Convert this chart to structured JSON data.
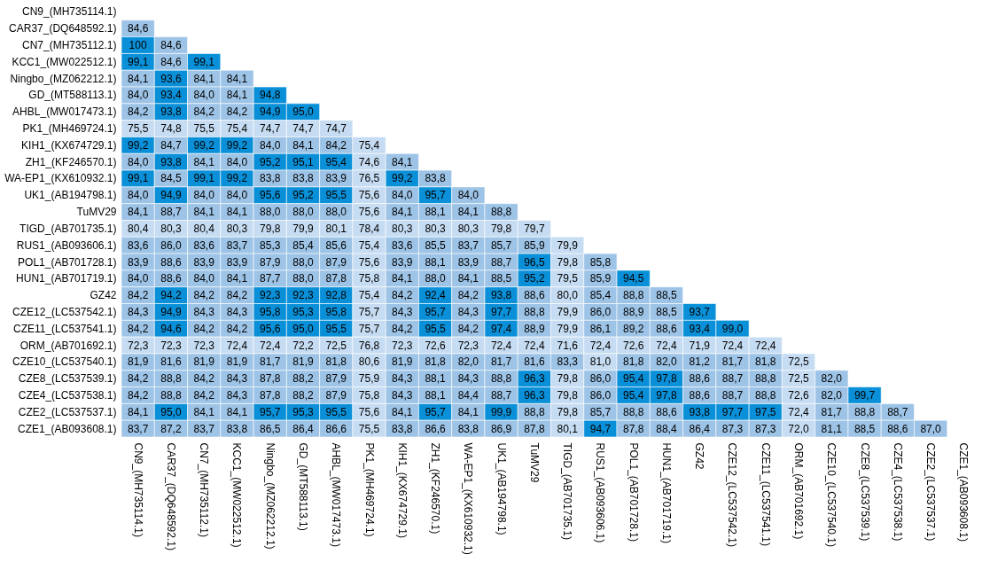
{
  "chart_data": {
    "type": "heatmap",
    "categories": [
      "CN9_(MH735114.1)",
      "CAR37_(DQ648592.1)",
      "CN7_(MH735112.1)",
      "KCC1_(MW022512.1)",
      "Ningbo_(MZ062212.1)",
      "GD_(MT588113.1)",
      "AHBL_(MW017473.1)",
      "PK1_(MH469724.1)",
      "KIH1_(KX674729.1)",
      "ZH1_(KF246570.1)",
      "WA-EP1_(KX610932.1)",
      "UK1_(AB194798.1)",
      "TuMV29",
      "TIGD_(AB701735.1)",
      "RUS1_(AB093606.1)",
      "POL1_(AB701728.1)",
      "HUN1_(AB701719.1)",
      "GZ42",
      "CZE12_(LC537542.1)",
      "CZE11_(LC537541.1)",
      "ORM_(AB701692.1)",
      "CZE10_(LC537540.1)",
      "CZE8_(LC537539.1)",
      "CZE4_(LC537538.1)",
      "CZE2_(LC537537.1)",
      "CZE1_(AB093608.1)"
    ],
    "y_categories": [
      "CN9_(MH735114.1)",
      "CAR37_(DQ648592.1)",
      "CN7_(MH735112.1)",
      "KCC1_(MW022512.1)",
      "Ningbo_(MZ062212.1)",
      "GD_(MT588113.1)",
      "AHBL_(MW017473.1)",
      "PK1_(MH469724.1)",
      "KIH1_(KX674729.1)",
      "ZH1_(KF246570.1)",
      "WA-EP1_(KX610932.1)",
      "UK1_(AB194798.1)",
      "TuMV29",
      "TIGD_(AB701735.1)",
      "RUS1_(AB093606.1)",
      "POL1_(AB701728.1)",
      "HUN1_(AB701719.1)",
      "GZ42",
      "CZE12_(LC537542.1)",
      "CZE11_(LC537541.1)",
      "ORM_(AB701692.1)",
      "CZE10_(LC537540.1)",
      "CZE8_(LC537539.1)",
      "CZE4_(LC537538.1)",
      "CZE2_(LC537537.1)",
      "CZE1_(AB093608.1)"
    ],
    "colors": [
      "#c6dcf2",
      "#9dc3e6",
      "#0a90d8"
    ],
    "cells": [
      [
        null,
        null,
        null,
        null,
        null,
        null,
        null,
        null,
        null,
        null,
        null,
        null,
        null,
        null,
        null,
        null,
        null,
        null,
        null,
        null,
        null,
        null,
        null,
        null,
        null,
        null
      ],
      [
        84.6,
        null,
        null,
        null,
        null,
        null,
        null,
        null,
        null,
        null,
        null,
        null,
        null,
        null,
        null,
        null,
        null,
        null,
        null,
        null,
        null,
        null,
        null,
        null,
        null,
        null
      ],
      [
        100,
        84.6,
        null,
        null,
        null,
        null,
        null,
        null,
        null,
        null,
        null,
        null,
        null,
        null,
        null,
        null,
        null,
        null,
        null,
        null,
        null,
        null,
        null,
        null,
        null,
        null
      ],
      [
        99.1,
        84.6,
        99.1,
        null,
        null,
        null,
        null,
        null,
        null,
        null,
        null,
        null,
        null,
        null,
        null,
        null,
        null,
        null,
        null,
        null,
        null,
        null,
        null,
        null,
        null,
        null
      ],
      [
        84.1,
        93.6,
        84.1,
        84.1,
        null,
        null,
        null,
        null,
        null,
        null,
        null,
        null,
        null,
        null,
        null,
        null,
        null,
        null,
        null,
        null,
        null,
        null,
        null,
        null,
        null,
        null
      ],
      [
        84.0,
        93.4,
        84.0,
        84.1,
        94.8,
        null,
        null,
        null,
        null,
        null,
        null,
        null,
        null,
        null,
        null,
        null,
        null,
        null,
        null,
        null,
        null,
        null,
        null,
        null,
        null,
        null
      ],
      [
        84.2,
        93.8,
        84.2,
        84.2,
        94.9,
        95.0,
        null,
        null,
        null,
        null,
        null,
        null,
        null,
        null,
        null,
        null,
        null,
        null,
        null,
        null,
        null,
        null,
        null,
        null,
        null,
        null
      ],
      [
        75.5,
        74.8,
        75.5,
        75.4,
        74.7,
        74.7,
        74.7,
        null,
        null,
        null,
        null,
        null,
        null,
        null,
        null,
        null,
        null,
        null,
        null,
        null,
        null,
        null,
        null,
        null,
        null,
        null
      ],
      [
        99.2,
        84.7,
        99.2,
        99.2,
        84.0,
        84.1,
        84.2,
        75.4,
        null,
        null,
        null,
        null,
        null,
        null,
        null,
        null,
        null,
        null,
        null,
        null,
        null,
        null,
        null,
        null,
        null,
        null
      ],
      [
        84.0,
        93.8,
        84.1,
        84.0,
        95.2,
        95.1,
        95.4,
        74.6,
        84.1,
        null,
        null,
        null,
        null,
        null,
        null,
        null,
        null,
        null,
        null,
        null,
        null,
        null,
        null,
        null,
        null,
        null
      ],
      [
        99.1,
        84.5,
        99.1,
        99.2,
        83.8,
        83.8,
        83.9,
        76.5,
        99.2,
        83.8,
        null,
        null,
        null,
        null,
        null,
        null,
        null,
        null,
        null,
        null,
        null,
        null,
        null,
        null,
        null,
        null
      ],
      [
        84.0,
        94.9,
        84.0,
        84.0,
        95.6,
        95.2,
        95.5,
        75.6,
        84.0,
        95.7,
        84.0,
        null,
        null,
        null,
        null,
        null,
        null,
        null,
        null,
        null,
        null,
        null,
        null,
        null,
        null,
        null
      ],
      [
        84.1,
        88.7,
        84.1,
        84.1,
        88.0,
        88.0,
        88.0,
        75.6,
        84.1,
        88.1,
        84.1,
        88.8,
        null,
        null,
        null,
        null,
        null,
        null,
        null,
        null,
        null,
        null,
        null,
        null,
        null,
        null
      ],
      [
        80.4,
        80.3,
        80.4,
        80.3,
        79.8,
        79.9,
        80.1,
        78.4,
        80.3,
        80.3,
        80.3,
        79.8,
        79.7,
        null,
        null,
        null,
        null,
        null,
        null,
        null,
        null,
        null,
        null,
        null,
        null,
        null
      ],
      [
        83.6,
        86.0,
        83.6,
        83.7,
        85.3,
        85.4,
        85.6,
        75.4,
        83.6,
        85.5,
        83.7,
        85.7,
        85.9,
        79.9,
        null,
        null,
        null,
        null,
        null,
        null,
        null,
        null,
        null,
        null,
        null,
        null
      ],
      [
        83.9,
        88.6,
        83.9,
        83.9,
        87.9,
        88.0,
        87.9,
        75.6,
        83.9,
        88.1,
        83.9,
        88.7,
        96.5,
        79.8,
        85.8,
        null,
        null,
        null,
        null,
        null,
        null,
        null,
        null,
        null,
        null,
        null
      ],
      [
        84.0,
        88.6,
        84.0,
        84.1,
        87.7,
        88.0,
        87.8,
        75.8,
        84.1,
        88.0,
        84.1,
        88.5,
        95.2,
        79.5,
        85.9,
        94.5,
        null,
        null,
        null,
        null,
        null,
        null,
        null,
        null,
        null,
        null
      ],
      [
        84.2,
        94.2,
        84.2,
        84.2,
        92.3,
        92.3,
        92.8,
        75.4,
        84.2,
        92.4,
        84.2,
        93.8,
        88.6,
        80.0,
        85.4,
        88.8,
        88.5,
        null,
        null,
        null,
        null,
        null,
        null,
        null,
        null,
        null
      ],
      [
        84.3,
        94.9,
        84.3,
        84.3,
        95.8,
        95.3,
        95.8,
        75.7,
        84.3,
        95.7,
        84.3,
        97.7,
        88.8,
        79.9,
        86.0,
        88.9,
        88.5,
        93.7,
        null,
        null,
        null,
        null,
        null,
        null,
        null,
        null
      ],
      [
        84.2,
        94.6,
        84.2,
        84.2,
        95.6,
        95.0,
        95.5,
        75.7,
        84.2,
        95.5,
        84.2,
        97.4,
        88.9,
        79.9,
        86.1,
        89.2,
        88.6,
        93.4,
        99.0,
        null,
        null,
        null,
        null,
        null,
        null,
        null
      ],
      [
        72.3,
        72.3,
        72.3,
        72.4,
        72.4,
        72.2,
        72.5,
        76.8,
        72.3,
        72.6,
        72.3,
        72.4,
        72.4,
        71.6,
        72.4,
        72.6,
        72.4,
        71.9,
        72.4,
        72.4,
        null,
        null,
        null,
        null,
        null,
        null
      ],
      [
        81.9,
        81.6,
        81.9,
        81.9,
        81.7,
        81.9,
        81.8,
        80.6,
        81.9,
        81.8,
        82.0,
        81.7,
        81.6,
        83.3,
        81.0,
        81.8,
        82.0,
        81.2,
        81.7,
        81.8,
        72.5,
        null,
        null,
        null,
        null,
        null
      ],
      [
        84.2,
        88.8,
        84.2,
        84.3,
        87.8,
        88.2,
        87.9,
        75.9,
        84.3,
        88.1,
        84.3,
        88.8,
        96.3,
        79.8,
        86.0,
        95.4,
        97.8,
        88.6,
        88.7,
        88.8,
        72.5,
        82.0,
        null,
        null,
        null,
        null
      ],
      [
        84.2,
        88.8,
        84.2,
        84.3,
        87.8,
        88.2,
        87.9,
        75.8,
        84.3,
        88.1,
        84.4,
        88.7,
        96.3,
        79.8,
        86.0,
        95.4,
        97.8,
        88.6,
        88.7,
        88.8,
        72.6,
        82.0,
        99.7,
        null,
        null,
        null
      ],
      [
        84.1,
        95.0,
        84.1,
        84.1,
        95.7,
        95.3,
        95.5,
        75.6,
        84.1,
        95.7,
        84.1,
        99.9,
        88.8,
        79.8,
        85.7,
        88.8,
        88.6,
        93.8,
        97.7,
        97.5,
        72.4,
        81.7,
        88.8,
        88.7,
        null,
        null
      ],
      [
        83.7,
        87.2,
        83.7,
        83.8,
        86.5,
        86.4,
        86.6,
        75.5,
        83.8,
        86.6,
        83.8,
        86.9,
        87.8,
        80.1,
        94.7,
        87.8,
        88.4,
        86.4,
        87.3,
        87.3,
        72.0,
        81.1,
        88.5,
        88.6,
        87.0,
        null
      ]
    ],
    "cell_labels": [
      [
        null,
        null,
        null,
        null,
        null,
        null,
        null,
        null,
        null,
        null,
        null,
        null,
        null,
        null,
        null,
        null,
        null,
        null,
        null,
        null,
        null,
        null,
        null,
        null,
        null,
        null
      ],
      [
        "84,6",
        null,
        null,
        null,
        null,
        null,
        null,
        null,
        null,
        null,
        null,
        null,
        null,
        null,
        null,
        null,
        null,
        null,
        null,
        null,
        null,
        null,
        null,
        null,
        null,
        null
      ],
      [
        "100",
        "84,6",
        null,
        null,
        null,
        null,
        null,
        null,
        null,
        null,
        null,
        null,
        null,
        null,
        null,
        null,
        null,
        null,
        null,
        null,
        null,
        null,
        null,
        null,
        null,
        null
      ],
      [
        "99,1",
        "84,6",
        "99,1",
        null,
        null,
        null,
        null,
        null,
        null,
        null,
        null,
        null,
        null,
        null,
        null,
        null,
        null,
        null,
        null,
        null,
        null,
        null,
        null,
        null,
        null,
        null
      ],
      [
        "84,1",
        "93,6",
        "84,1",
        "84,1",
        null,
        null,
        null,
        null,
        null,
        null,
        null,
        null,
        null,
        null,
        null,
        null,
        null,
        null,
        null,
        null,
        null,
        null,
        null,
        null,
        null,
        null
      ],
      [
        "84,0",
        "93,4",
        "84,0",
        "84,1",
        "94,8",
        null,
        null,
        null,
        null,
        null,
        null,
        null,
        null,
        null,
        null,
        null,
        null,
        null,
        null,
        null,
        null,
        null,
        null,
        null,
        null,
        null
      ],
      [
        "84,2",
        "93,8",
        "84,2",
        "84,2",
        "94,9",
        "95,0",
        null,
        null,
        null,
        null,
        null,
        null,
        null,
        null,
        null,
        null,
        null,
        null,
        null,
        null,
        null,
        null,
        null,
        null,
        null,
        null
      ],
      [
        "75,5",
        "74,8",
        "75,5",
        "75,4",
        "74,7",
        "74,7",
        "74,7",
        null,
        null,
        null,
        null,
        null,
        null,
        null,
        null,
        null,
        null,
        null,
        null,
        null,
        null,
        null,
        null,
        null,
        null,
        null
      ],
      [
        "99,2",
        "84,7",
        "99,2",
        "99,2",
        "84,0",
        "84,1",
        "84,2",
        "75,4",
        null,
        null,
        null,
        null,
        null,
        null,
        null,
        null,
        null,
        null,
        null,
        null,
        null,
        null,
        null,
        null,
        null,
        null
      ],
      [
        "84,0",
        "93,8",
        "84,1",
        "84,0",
        "95,2",
        "95,1",
        "95,4",
        "74,6",
        "84,1",
        null,
        null,
        null,
        null,
        null,
        null,
        null,
        null,
        null,
        null,
        null,
        null,
        null,
        null,
        null,
        null,
        null
      ],
      [
        "99,1",
        "84,5",
        "99,1",
        "99,2",
        "83,8",
        "83,8",
        "83,9",
        "76,5",
        "99,2",
        "83,8",
        null,
        null,
        null,
        null,
        null,
        null,
        null,
        null,
        null,
        null,
        null,
        null,
        null,
        null,
        null,
        null
      ],
      [
        "84,0",
        "94,9",
        "84,0",
        "84,0",
        "95,6",
        "95,2",
        "95,5",
        "75,6",
        "84,0",
        "95,7",
        "84,0",
        null,
        null,
        null,
        null,
        null,
        null,
        null,
        null,
        null,
        null,
        null,
        null,
        null,
        null,
        null
      ],
      [
        "84,1",
        "88,7",
        "84,1",
        "84,1",
        "88,0",
        "88,0",
        "88,0",
        "75,6",
        "84,1",
        "88,1",
        "84,1",
        "88,8",
        null,
        null,
        null,
        null,
        null,
        null,
        null,
        null,
        null,
        null,
        null,
        null,
        null,
        null
      ],
      [
        "80,4",
        "80,3",
        "80,4",
        "80,3",
        "79,8",
        "79,9",
        "80,1",
        "78,4",
        "80,3",
        "80,3",
        "80,3",
        "79,8",
        "79,7",
        null,
        null,
        null,
        null,
        null,
        null,
        null,
        null,
        null,
        null,
        null,
        null,
        null
      ],
      [
        "83,6",
        "86,0",
        "83,6",
        "83,7",
        "85,3",
        "85,4",
        "85,6",
        "75,4",
        "83,6",
        "85,5",
        "83,7",
        "85,7",
        "85,9",
        "79,9",
        null,
        null,
        null,
        null,
        null,
        null,
        null,
        null,
        null,
        null,
        null,
        null
      ],
      [
        "83,9",
        "88,6",
        "83,9",
        "83,9",
        "87,9",
        "88,0",
        "87,9",
        "75,6",
        "83,9",
        "88,1",
        "83,9",
        "88,7",
        "96,5",
        "79,8",
        "85,8",
        null,
        null,
        null,
        null,
        null,
        null,
        null,
        null,
        null,
        null,
        null
      ],
      [
        "84,0",
        "88,6",
        "84,0",
        "84,1",
        "87,7",
        "88,0",
        "87,8",
        "75,8",
        "84,1",
        "88,0",
        "84,1",
        "88,5",
        "95,2",
        "79,5",
        "85,9",
        "94,5",
        null,
        null,
        null,
        null,
        null,
        null,
        null,
        null,
        null,
        null
      ],
      [
        "84,2",
        "94,2",
        "84,2",
        "84,2",
        "92,3",
        "92,3",
        "92,8",
        "75,4",
        "84,2",
        "92,4",
        "84,2",
        "93,8",
        "88,6",
        "80,0",
        "85,4",
        "88,8",
        "88,5",
        null,
        null,
        null,
        null,
        null,
        null,
        null,
        null,
        null
      ],
      [
        "84,3",
        "94,9",
        "84,3",
        "84,3",
        "95,8",
        "95,3",
        "95,8",
        "75,7",
        "84,3",
        "95,7",
        "84,3",
        "97,7",
        "88,8",
        "79,9",
        "86,0",
        "88,9",
        "88,5",
        "93,7",
        null,
        null,
        null,
        null,
        null,
        null,
        null,
        null
      ],
      [
        "84,2",
        "94,6",
        "84,2",
        "84,2",
        "95,6",
        "95,0",
        "95,5",
        "75,7",
        "84,2",
        "95,5",
        "84,2",
        "97,4",
        "88,9",
        "79,9",
        "86,1",
        "89,2",
        "88,6",
        "93,4",
        "99,0",
        null,
        null,
        null,
        null,
        null,
        null,
        null
      ],
      [
        "72,3",
        "72,3",
        "72,3",
        "72,4",
        "72,4",
        "72,2",
        "72,5",
        "76,8",
        "72,3",
        "72,6",
        "72,3",
        "72,4",
        "72,4",
        "71,6",
        "72,4",
        "72,6",
        "72,4",
        "71,9",
        "72,4",
        "72,4",
        null,
        null,
        null,
        null,
        null,
        null
      ],
      [
        "81,9",
        "81,6",
        "81,9",
        "81,9",
        "81,7",
        "81,9",
        "81,8",
        "80,6",
        "81,9",
        "81,8",
        "82,0",
        "81,7",
        "81,6",
        "83,3",
        "81,0",
        "81,8",
        "82,0",
        "81,2",
        "81,7",
        "81,8",
        "72,5",
        null,
        null,
        null,
        null,
        null
      ],
      [
        "84,2",
        "88,8",
        "84,2",
        "84,3",
        "87,8",
        "88,2",
        "87,9",
        "75,9",
        "84,3",
        "88,1",
        "84,3",
        "88,8",
        "96,3",
        "79,8",
        "86,0",
        "95,4",
        "97,8",
        "88,6",
        "88,7",
        "88,8",
        "72,5",
        "82,0",
        null,
        null,
        null,
        null
      ],
      [
        "84,2",
        "88,8",
        "84,2",
        "84,3",
        "87,8",
        "88,2",
        "87,9",
        "75,8",
        "84,3",
        "88,1",
        "84,4",
        "88,7",
        "96,3",
        "79,8",
        "86,0",
        "95,4",
        "97,8",
        "88,6",
        "88,7",
        "88,8",
        "72,6",
        "82,0",
        "99,7",
        null,
        null,
        null
      ],
      [
        "84,1",
        "95,0",
        "84,1",
        "84,1",
        "95,7",
        "95,3",
        "95,5",
        "75,6",
        "84,1",
        "95,7",
        "84,1",
        "99,9",
        "88,8",
        "79,8",
        "85,7",
        "88,8",
        "88,6",
        "93,8",
        "97,7",
        "97,5",
        "72,4",
        "81,7",
        "88,8",
        "88,7",
        null,
        null
      ],
      [
        "83,7",
        "87,2",
        "83,7",
        "83,8",
        "86,5",
        "86,4",
        "86,6",
        "75,5",
        "83,8",
        "86,6",
        "83,8",
        "86,9",
        "87,8",
        "80,1",
        "94,7",
        "87,8",
        "88,4",
        "86,4",
        "87,3",
        "87,3",
        "72,0",
        "81,1",
        "88,5",
        "88,6",
        "87,0",
        null
      ]
    ]
  }
}
